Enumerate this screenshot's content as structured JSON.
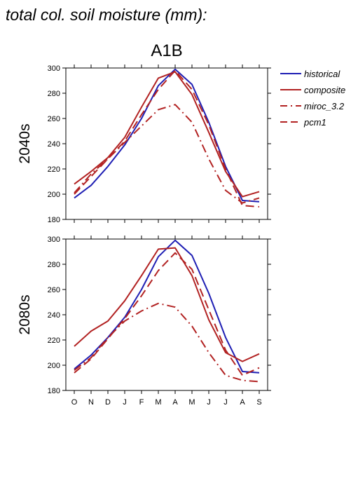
{
  "figure": {
    "title": "total col. soil moisture (mm):",
    "scenario": "A1B"
  },
  "chart_data": [
    {
      "type": "line",
      "row_label": "2040s",
      "title": "",
      "xlabel": "",
      "ylabel": "",
      "categories": [
        "O",
        "N",
        "D",
        "J",
        "F",
        "M",
        "A",
        "M",
        "J",
        "J",
        "A",
        "S"
      ],
      "ylim": [
        180,
        300
      ],
      "yticks": [
        180,
        200,
        220,
        240,
        260,
        280,
        300
      ],
      "grid": false,
      "series": [
        {
          "name": "historical",
          "color": "#1f1fb4",
          "dash": "solid",
          "values": [
            197,
            207,
            222,
            239,
            260,
            286,
            299,
            287,
            257,
            222,
            195,
            194
          ]
        },
        {
          "name": "composite",
          "color": "#b22222",
          "dash": "solid",
          "values": [
            208,
            218,
            229,
            245,
            269,
            292,
            297,
            279,
            249,
            218,
            198,
            202
          ]
        },
        {
          "name": "miroc_3.2",
          "color": "#b22222",
          "dash": "dashdot",
          "values": [
            201,
            216,
            228,
            241,
            254,
            267,
            271,
            257,
            228,
            203,
            193,
            197
          ]
        },
        {
          "name": "pcm1",
          "color": "#b22222",
          "dash": "dashed",
          "values": [
            200,
            214,
            228,
            242,
            263,
            283,
            298,
            283,
            255,
            220,
            191,
            190
          ]
        }
      ]
    },
    {
      "type": "line",
      "row_label": "2080s",
      "title": "",
      "xlabel": "",
      "ylabel": "",
      "categories": [
        "O",
        "N",
        "D",
        "J",
        "F",
        "M",
        "A",
        "M",
        "J",
        "J",
        "A",
        "S"
      ],
      "ylim": [
        180,
        300
      ],
      "yticks": [
        180,
        200,
        220,
        240,
        260,
        280,
        300
      ],
      "grid": false,
      "series": [
        {
          "name": "historical",
          "color": "#1f1fb4",
          "dash": "solid",
          "values": [
            197,
            208,
            222,
            238,
            260,
            286,
            299,
            287,
            257,
            222,
            195,
            194
          ]
        },
        {
          "name": "composite",
          "color": "#b22222",
          "dash": "solid",
          "values": [
            215,
            227,
            235,
            251,
            271,
            292,
            293,
            271,
            236,
            210,
            203,
            209
          ]
        },
        {
          "name": "miroc_3.2",
          "color": "#b22222",
          "dash": "dashdot",
          "values": [
            196,
            206,
            222,
            235,
            243,
            249,
            246,
            231,
            210,
            192,
            188,
            187
          ]
        },
        {
          "name": "pcm1",
          "color": "#b22222",
          "dash": "dashed",
          "values": [
            194,
            205,
            221,
            237,
            255,
            275,
            289,
            276,
            244,
            212,
            192,
            198
          ]
        }
      ]
    }
  ]
}
